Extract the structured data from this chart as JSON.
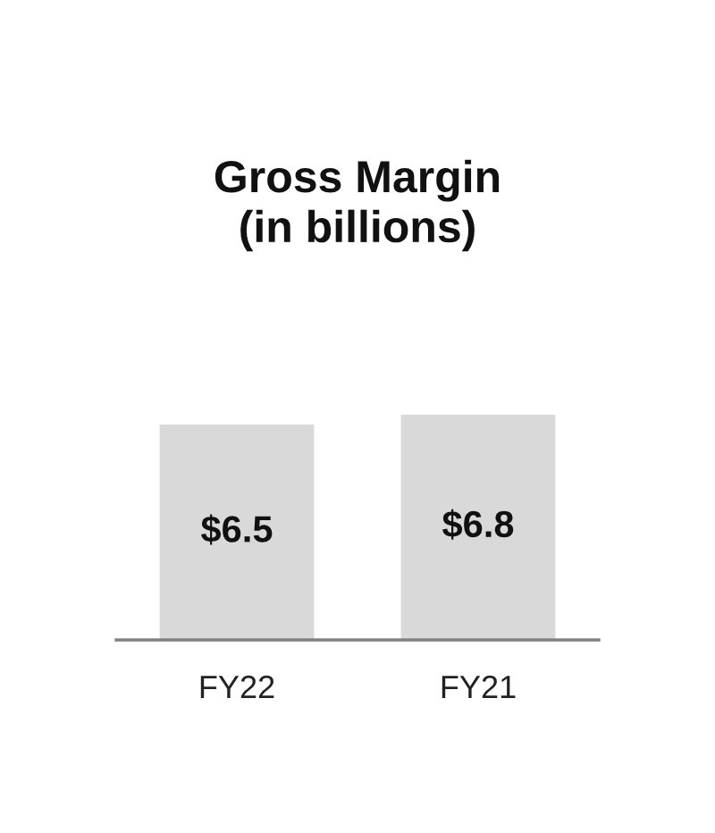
{
  "chart_data": {
    "type": "bar",
    "title": "Gross Margin\n(in billions)",
    "categories": [
      "FY22",
      "FY21"
    ],
    "values": [
      6.5,
      6.8
    ],
    "value_labels": [
      "$6.5",
      "$6.8"
    ],
    "color": "#d9d9d9",
    "grid": false,
    "legend": false
  }
}
